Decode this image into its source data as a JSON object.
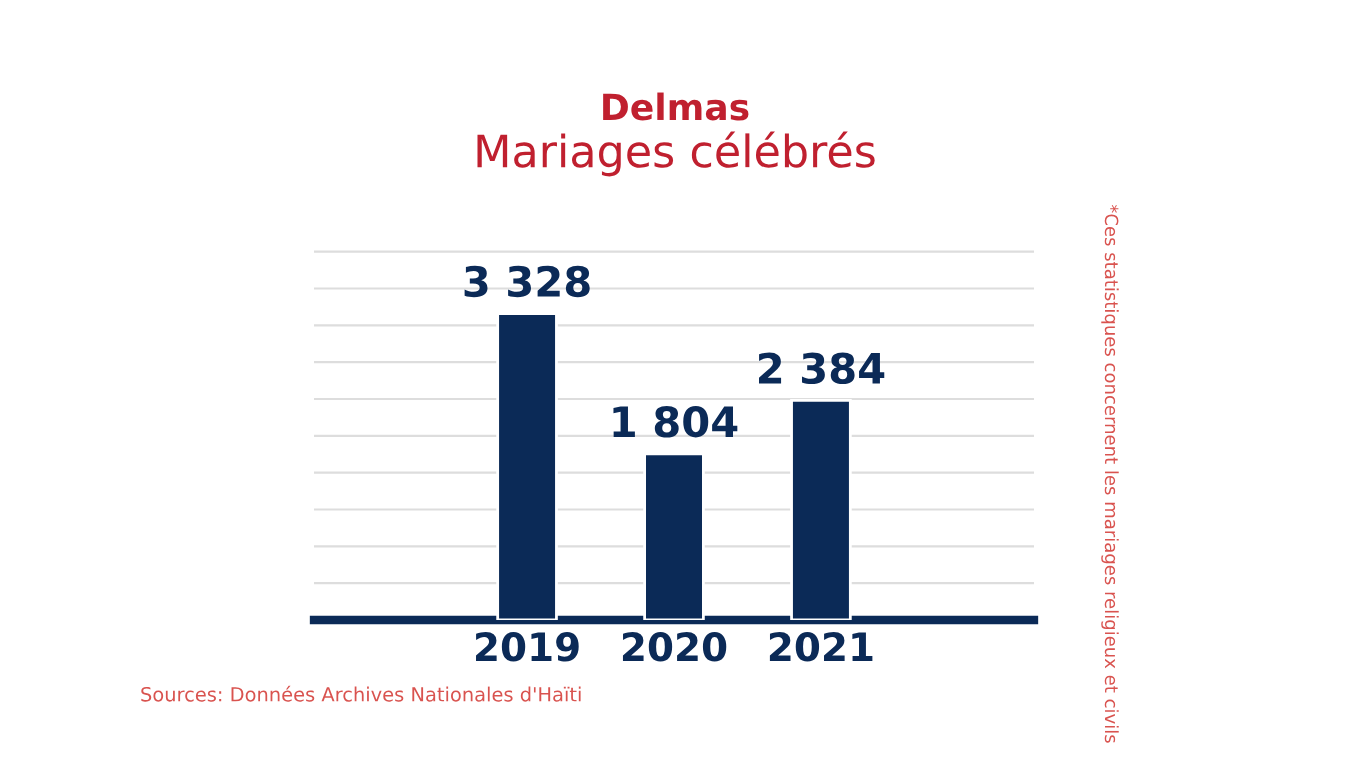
{
  "chart_data": {
    "type": "bar",
    "title": "Delmas",
    "subtitle": "Mariages célébrés",
    "categories": [
      "2019",
      "2020",
      "2021"
    ],
    "values": [
      3328,
      1804,
      2384
    ],
    "color": "#0b2a57",
    "value_labels": [
      "3 328",
      "1 804",
      "2 384"
    ],
    "grid": true,
    "tick_labels": "x",
    "annotations": [
      "Sources: Données Archives Nationales d'Haïti",
      "*Ces statistiques concernent les mariages religieux et civils"
    ]
  }
}
